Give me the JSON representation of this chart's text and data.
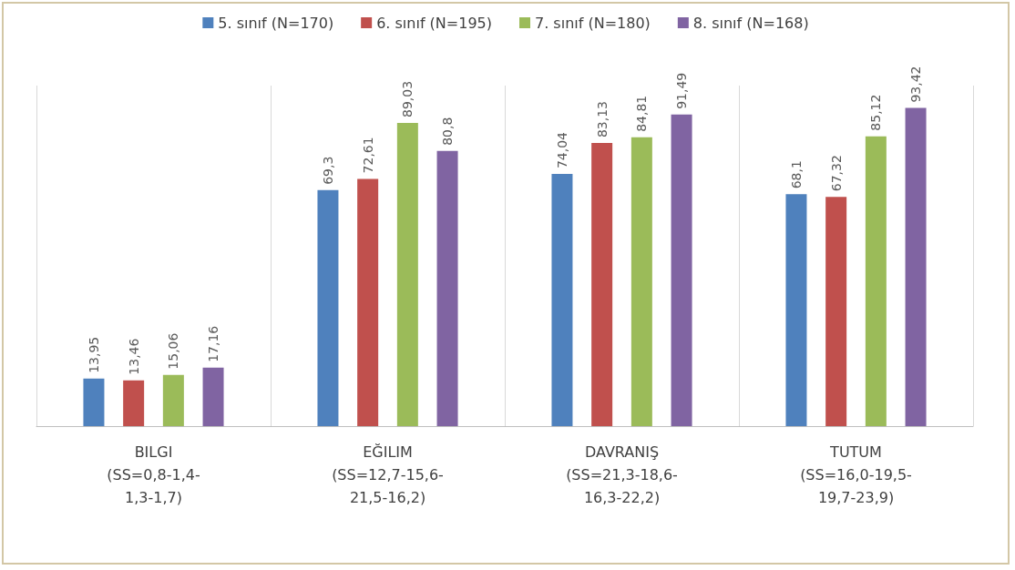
{
  "chart_data": {
    "type": "bar",
    "categories": [
      "BILGI (SS=0,8-1,4-1,3-1,7)",
      "EĞILIM (SS=12,7-15,6-21,5-16,2)",
      "DAVRANIŞ (SS=21,3-18,6-16,3-22,2)",
      "TUTUM (SS=16,0-19,5-19,7-23,9)"
    ],
    "series": [
      {
        "name": "5. sınıf (N=170)",
        "color": "#4f81bd",
        "values": [
          13.95,
          69.3,
          74.04,
          68.1
        ],
        "value_labels": [
          "13,95",
          "69,3",
          "74,04",
          "68,1"
        ]
      },
      {
        "name": "6. sınıf (N=195)",
        "color": "#c0504d",
        "values": [
          13.46,
          72.61,
          83.13,
          67.32
        ],
        "value_labels": [
          "13,46",
          "72,61",
          "83,13",
          "67,32"
        ]
      },
      {
        "name": "7. sınıf (N=180)",
        "color": "#9bbb59",
        "values": [
          15.06,
          89.03,
          84.81,
          85.12
        ],
        "value_labels": [
          "15,06",
          "89,03",
          "84,81",
          "85,12"
        ]
      },
      {
        "name": "8. sınıf (N=168)",
        "color": "#8064a2",
        "values": [
          17.16,
          80.8,
          91.49,
          93.42
        ],
        "value_labels": [
          "17,16",
          "80,8",
          "91,49",
          "93,42"
        ]
      }
    ],
    "grid": "x",
    "legend": "top",
    "tick_labels": "x"
  }
}
